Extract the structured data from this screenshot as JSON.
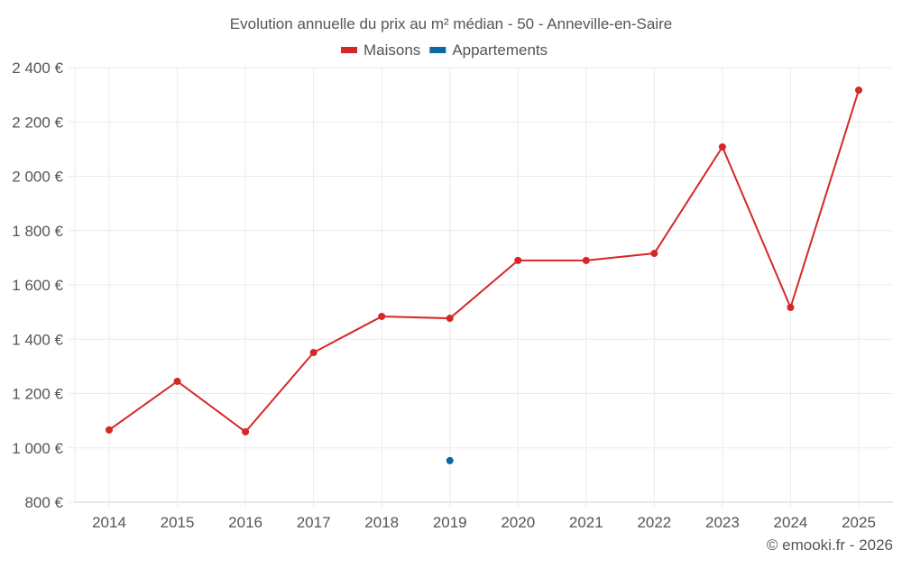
{
  "chart_data": {
    "type": "line",
    "title": "Evolution annuelle du prix au m² médian - 50 - Anneville-en-Saire",
    "categories": [
      "2014",
      "2015",
      "2016",
      "2017",
      "2018",
      "2019",
      "2020",
      "2021",
      "2022",
      "2023",
      "2024",
      "2025"
    ],
    "series": [
      {
        "name": "Maisons",
        "color": "#d62728",
        "values": [
          1066,
          1245,
          1059,
          1351,
          1484,
          1477,
          1690,
          1690,
          1716,
          2108,
          1517,
          2317
        ]
      },
      {
        "name": "Appartements",
        "color": "#0a68a4",
        "values": [
          null,
          null,
          null,
          null,
          null,
          953,
          null,
          null,
          null,
          null,
          null,
          null
        ]
      }
    ],
    "ylim": [
      800,
      2400
    ],
    "yticks": [
      800,
      1000,
      1200,
      1400,
      1600,
      1800,
      2000,
      2200,
      2400
    ],
    "ytick_labels": [
      "800 €",
      "1 000 €",
      "1 200 €",
      "1 400 €",
      "1 600 €",
      "1 800 €",
      "2 000 €",
      "2 200 €",
      "2 400 €"
    ],
    "grid": true,
    "legend": "top-center",
    "credit": "© emooki.fr - 2026"
  }
}
